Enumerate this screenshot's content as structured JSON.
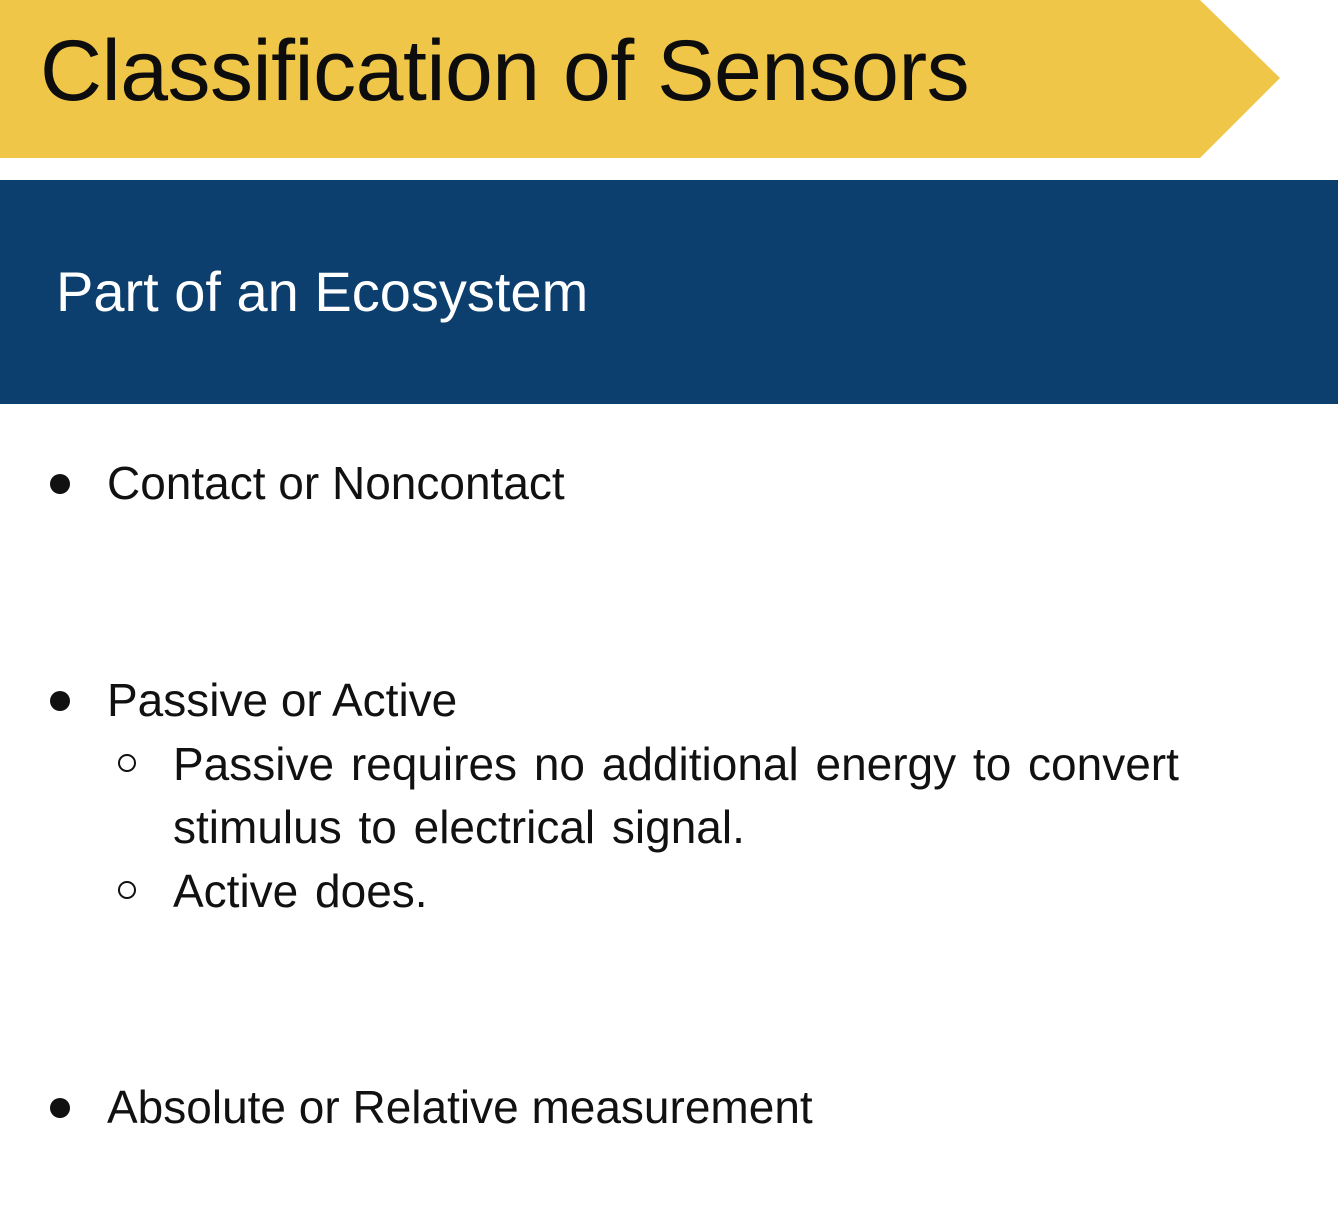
{
  "slide": {
    "title": "Classification of Sensors",
    "subtitle": "Part of an Ecosystem",
    "colors": {
      "title_banner": "#f0c649",
      "subtitle_band": "#0c3f6e",
      "subtitle_text": "#ffffff",
      "body_text": "#111111"
    }
  },
  "bullets": [
    {
      "text": "Contact or Noncontact",
      "sub_items": []
    },
    {
      "text": "Passive or Active",
      "sub_items": [
        "Passive requires no additional energy to convert stimulus to electrical signal.",
        "Active does."
      ]
    },
    {
      "text": "Absolute or Relative measurement",
      "sub_items": []
    }
  ],
  "icons": {
    "bullet": "filled-circle-bullet-icon",
    "sub_bullet": "hollow-circle-bullet-icon"
  }
}
